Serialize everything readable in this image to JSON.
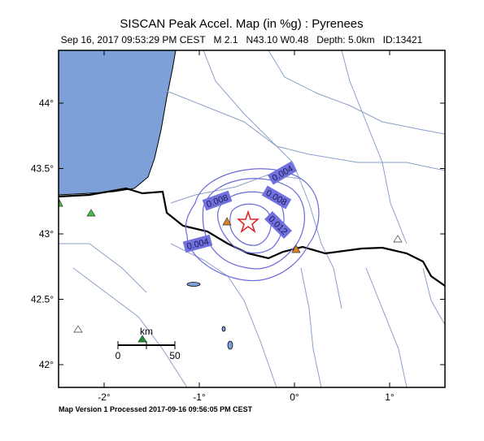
{
  "map": {
    "title": "SISCAN Peak Accel. Map (in %g) : Pyrenees",
    "subtitle": "Sep 16, 2017 09:53:29 PM CEST   M 2.1   N43.10 W0.48   Depth: 5.0km   ID:13421",
    "footer": "Map Version 1 Processed 2017-09-16 09:56:05 PM CEST",
    "lon_ticks": [
      {
        "value": -2,
        "label": "-2°"
      },
      {
        "value": -1,
        "label": "-1°"
      },
      {
        "value": 0,
        "label": "0°"
      },
      {
        "value": 1,
        "label": "1°"
      }
    ],
    "lat_ticks": [
      {
        "value": 44,
        "label": "44°"
      },
      {
        "value": 43.5,
        "label": "43.5°"
      },
      {
        "value": 43,
        "label": "43°"
      },
      {
        "value": 42.5,
        "label": "42.5°"
      },
      {
        "value": 42,
        "label": "42°"
      }
    ],
    "contour_labels": [
      "0.004",
      "0.008",
      "0.008",
      "0.012",
      "0.004"
    ],
    "scale": {
      "unit": "km",
      "start": "0",
      "end": "50"
    }
  }
}
